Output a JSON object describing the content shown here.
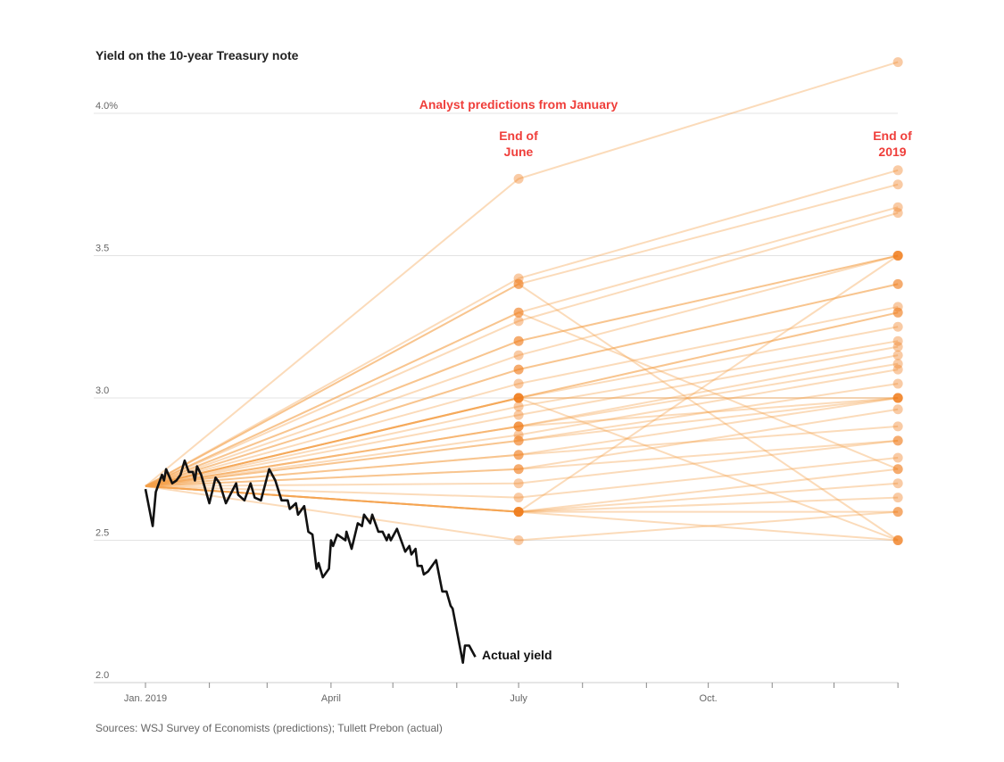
{
  "chart_data": {
    "type": "line",
    "title": "Yield on the 10-year Treasury note",
    "ylabel": "",
    "xlabel": "",
    "ylim": [
      2.0,
      4.2
    ],
    "yticks": [
      {
        "value": 4.0,
        "label": "4.0%"
      },
      {
        "value": 3.5,
        "label": "3.5"
      },
      {
        "value": 3.0,
        "label": "3.0"
      },
      {
        "value": 2.5,
        "label": "2.5"
      },
      {
        "value": 2.0,
        "label": "2.0"
      }
    ],
    "x_unit": "day of 2019",
    "xlim": [
      0,
      365
    ],
    "xticks_minor": [
      0,
      31,
      59,
      90,
      120,
      151,
      181,
      212,
      243,
      273,
      304,
      334,
      365
    ],
    "xtick_labels": [
      {
        "day": 0,
        "label": "Jan. 2019"
      },
      {
        "day": 90,
        "label": "April"
      },
      {
        "day": 181,
        "label": "July"
      },
      {
        "day": 273,
        "label": "Oct."
      }
    ],
    "grid": true,
    "annotations": {
      "predictions_header": "Analyst predictions from January",
      "june_label_1": "End of",
      "june_label_2": "June",
      "year_end_label_1": "End of",
      "year_end_label_2": "2019",
      "actual_label": "Actual yield"
    },
    "forecast_start": {
      "day": 0,
      "value": 2.69
    },
    "forecast_days": {
      "june": 181,
      "year_end": 365
    },
    "forecasts": [
      [
        3.77,
        4.18
      ],
      [
        3.42,
        3.8
      ],
      [
        3.4,
        3.75
      ],
      [
        3.3,
        3.67
      ],
      [
        3.27,
        3.65
      ],
      [
        3.2,
        3.5
      ],
      [
        3.2,
        3.5
      ],
      [
        3.15,
        3.5
      ],
      [
        3.1,
        3.4
      ],
      [
        3.1,
        3.4
      ],
      [
        3.05,
        3.32
      ],
      [
        3.0,
        3.3
      ],
      [
        3.0,
        3.3
      ],
      [
        3.0,
        3.25
      ],
      [
        2.97,
        3.2
      ],
      [
        2.94,
        3.18
      ],
      [
        2.9,
        3.15
      ],
      [
        2.9,
        3.12
      ],
      [
        2.87,
        3.1
      ],
      [
        2.85,
        3.05
      ],
      [
        2.85,
        3.0
      ],
      [
        2.8,
        3.0
      ],
      [
        2.9,
        3.0
      ],
      [
        3.0,
        3.0
      ],
      [
        2.75,
        2.96
      ],
      [
        2.8,
        2.9
      ],
      [
        2.7,
        2.85
      ],
      [
        2.75,
        2.85
      ],
      [
        2.65,
        2.79
      ],
      [
        2.6,
        2.75
      ],
      [
        2.6,
        2.7
      ],
      [
        2.6,
        2.65
      ],
      [
        2.6,
        3.5
      ],
      [
        3.4,
        2.5
      ],
      [
        3.0,
        2.5
      ],
      [
        2.6,
        2.5
      ],
      [
        2.5,
        2.6
      ],
      [
        2.6,
        2.6
      ],
      [
        3.3,
        2.75
      ]
    ],
    "actual": {
      "name": "Actual yield",
      "days": [
        0,
        3.5,
        5,
        8,
        9,
        10,
        13,
        15,
        17,
        19,
        21,
        23,
        24,
        25,
        27,
        31,
        34,
        36,
        39,
        44,
        45,
        48,
        51,
        53,
        56,
        60,
        63,
        66,
        69,
        70,
        73,
        74,
        77,
        79,
        81,
        83,
        84,
        86,
        89,
        90,
        91,
        93,
        95,
        97,
        97.5,
        100,
        103,
        105,
        106,
        109,
        110,
        113,
        115,
        117,
        118,
        119,
        122,
        123,
        126,
        128,
        129,
        131,
        132,
        134,
        135,
        137,
        141,
        144,
        146,
        148,
        149,
        154,
        155,
        157,
        160
      ],
      "values": [
        2.68,
        2.55,
        2.67,
        2.73,
        2.71,
        2.75,
        2.7,
        2.71,
        2.73,
        2.78,
        2.74,
        2.74,
        2.71,
        2.76,
        2.73,
        2.63,
        2.72,
        2.7,
        2.63,
        2.7,
        2.66,
        2.64,
        2.7,
        2.65,
        2.64,
        2.75,
        2.71,
        2.64,
        2.64,
        2.61,
        2.63,
        2.59,
        2.62,
        2.53,
        2.52,
        2.4,
        2.42,
        2.37,
        2.4,
        2.5,
        2.48,
        2.52,
        2.51,
        2.5,
        2.53,
        2.47,
        2.56,
        2.55,
        2.59,
        2.56,
        2.59,
        2.53,
        2.53,
        2.5,
        2.52,
        2.5,
        2.54,
        2.52,
        2.46,
        2.48,
        2.45,
        2.47,
        2.41,
        2.41,
        2.38,
        2.39,
        2.43,
        2.32,
        2.32,
        2.27,
        2.26,
        2.07,
        2.13,
        2.13,
        2.09
      ]
    },
    "colors": {
      "forecast_line": "#f5a04a",
      "forecast_dot": "#f07d1e",
      "actual": "#111111",
      "accent": "#ef3e3a"
    }
  },
  "source": "Sources: WSJ Survey of Economists (predictions); Tullett Prebon (actual)"
}
